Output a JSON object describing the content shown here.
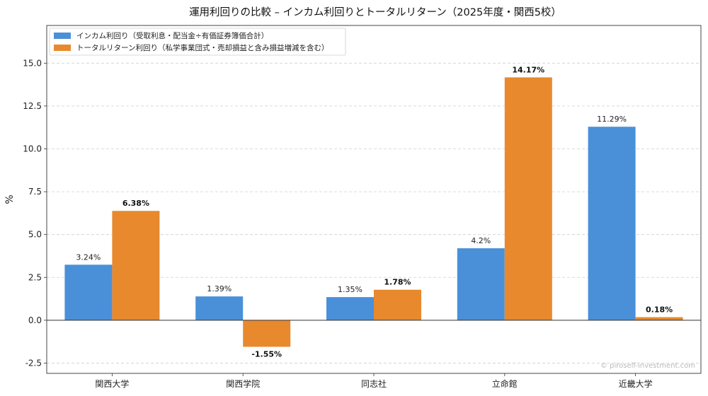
{
  "chart_data": {
    "type": "bar",
    "title": "運用利回りの比較 – インカム利回りとトータルリターン（2025年度・関西5校）",
    "xlabel": "",
    "ylabel": "%",
    "categories": [
      "関西大学",
      "関西学院",
      "同志社",
      "立命館",
      "近畿大学"
    ],
    "series": [
      {
        "name": "インカム利回り（受取利息・配当金÷有価証券簿価合計）",
        "color": "#4a90d9",
        "values": [
          3.24,
          1.39,
          1.35,
          4.2,
          11.29
        ],
        "labels": [
          "3.24%",
          "1.39%",
          "1.35%",
          "4.2%",
          "11.29%"
        ]
      },
      {
        "name": "トータルリターン利回り（私学事業団式・売却損益と含み損益増減を含む）",
        "color": "#e8892e",
        "values": [
          6.38,
          -1.55,
          1.78,
          14.17,
          0.18
        ],
        "labels": [
          "6.38%",
          "-1.55%",
          "1.78%",
          "14.17%",
          "0.18%"
        ]
      }
    ],
    "ylim": [
      -3.1,
      17.2
    ],
    "yticks": [
      -2.5,
      0.0,
      2.5,
      5.0,
      7.5,
      10.0,
      12.5,
      15.0
    ],
    "ytick_labels": [
      "-2.5",
      "0.0",
      "2.5",
      "5.0",
      "7.5",
      "10.0",
      "12.5",
      "15.0"
    ],
    "grid": true,
    "legend_position": "top-left"
  },
  "watermark": "© piroself-investment.com"
}
